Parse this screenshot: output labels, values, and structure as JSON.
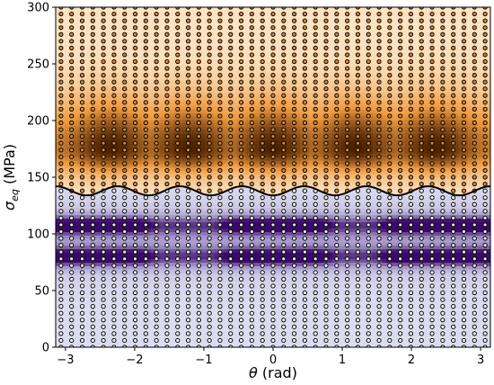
{
  "chart_data": {
    "type": "heatmap",
    "title": "",
    "xlabel": {
      "symbol": "θ",
      "unit": " (rad)"
    },
    "ylabel": {
      "symbol": "σ",
      "subscript": "eq",
      "unit": " (MPa)"
    },
    "xlim": [
      -3.14159,
      3.14159
    ],
    "ylim": [
      0,
      300
    ],
    "x_ticks": [
      -3,
      -2,
      -1,
      0,
      1,
      2,
      3
    ],
    "x_tick_labels": [
      "−3",
      "−2",
      "−1",
      "0",
      "1",
      "2",
      "3"
    ],
    "y_ticks": [
      0,
      50,
      100,
      150,
      200,
      250,
      300
    ],
    "y_tick_labels": [
      "0",
      "50",
      "100",
      "150",
      "200",
      "250",
      "300"
    ],
    "boundary_curve": {
      "mean": 138,
      "amplitude": 4,
      "cycles_over_range": 7,
      "color": "#000000"
    },
    "upper_region": {
      "colormap": "orange",
      "colors": {
        "light": "#fbe3c4",
        "mid": "#ee9a3f",
        "dark": "#4a2000"
      },
      "peak_y": 175,
      "peaks_x": [
        -2.35,
        -1.2,
        0,
        1.2,
        2.35
      ]
    },
    "lower_region": {
      "colormap": "purple",
      "colors": {
        "light": "#dcdcf0",
        "mid": "#9c8cc4",
        "dark": "#3a0a6a"
      },
      "bands": [
        {
          "y_center": 108,
          "width": 8
        },
        {
          "y_center": 80,
          "width": 8
        }
      ],
      "dark_x_ranges": [
        [
          -3.14,
          -2.0
        ],
        [
          -0.5,
          0.6
        ],
        [
          1.8,
          3.14
        ]
      ]
    },
    "sample_points": {
      "x_count": 41,
      "y_step": 6,
      "y_max": 300,
      "marker": "circle",
      "edge_color": "#000000"
    },
    "grid": false,
    "legend": "none"
  }
}
